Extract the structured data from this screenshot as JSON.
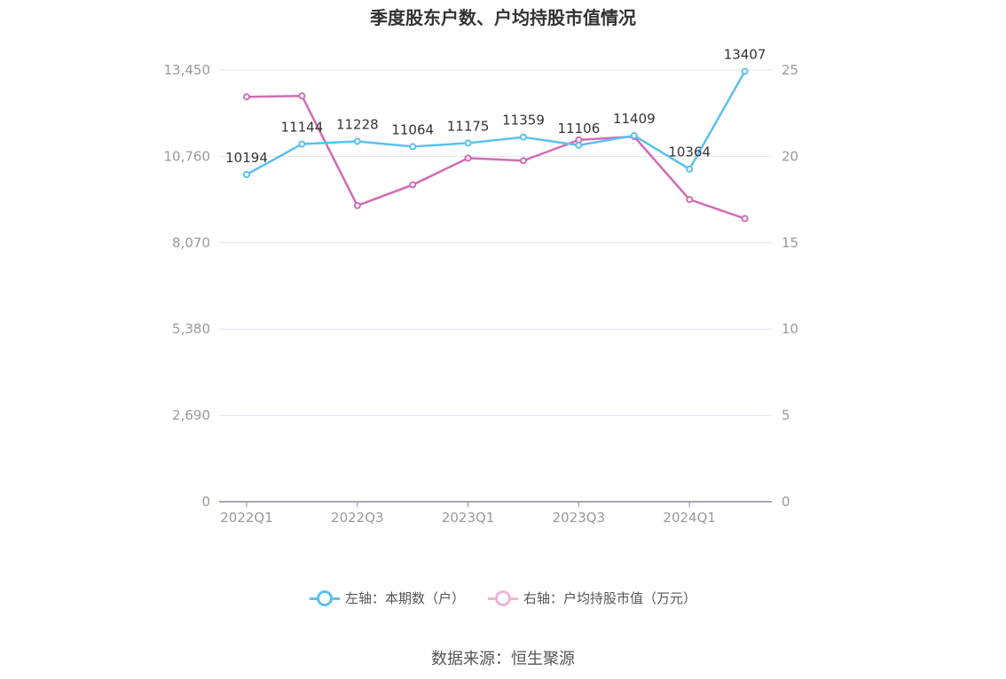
{
  "title": "季度股东户数、户均持股市值情况",
  "source": "数据来源：恒生聚源",
  "legend": {
    "left": "左轴：本期数（户）",
    "right": "右轴：户均持股市值（万元）"
  },
  "colors": {
    "left_series": "#5bc0f0",
    "right_series": "#d36bb5"
  },
  "chart_data": {
    "type": "line",
    "x": [
      "2022Q1",
      "2022Q2",
      "2022Q3",
      "2022Q4",
      "2023Q1",
      "2023Q2",
      "2023Q3",
      "2023Q4",
      "2024Q1",
      "2024Q2"
    ],
    "x_tick_labels": [
      "2022Q1",
      "2022Q3",
      "2023Q1",
      "2023Q3",
      "2024Q1"
    ],
    "y_left_ticks": [
      "0",
      "2,690",
      "5,380",
      "8,070",
      "10,760",
      "13,450"
    ],
    "y_right_ticks": [
      "0",
      "5",
      "10",
      "15",
      "20",
      "25"
    ],
    "ylim_left": [
      0,
      13450
    ],
    "ylim_right": [
      0,
      25
    ],
    "series": [
      {
        "name": "左轴：本期数（户）",
        "axis": "left",
        "values": [
          10194,
          11144,
          11228,
          11064,
          11175,
          11359,
          11106,
          11409,
          10364,
          13407
        ],
        "labels": [
          "10194",
          "11144",
          "11228",
          "11064",
          "11175",
          "11359",
          "11106",
          "11409",
          "10364",
          "13407"
        ]
      },
      {
        "name": "右轴：户均持股市值（万元）",
        "axis": "right",
        "values": [
          23.45,
          23.5,
          17.15,
          18.35,
          19.9,
          19.75,
          20.95,
          21.15,
          17.5,
          16.4
        ]
      }
    ],
    "grid": true,
    "legend_position": "bottom-center"
  }
}
